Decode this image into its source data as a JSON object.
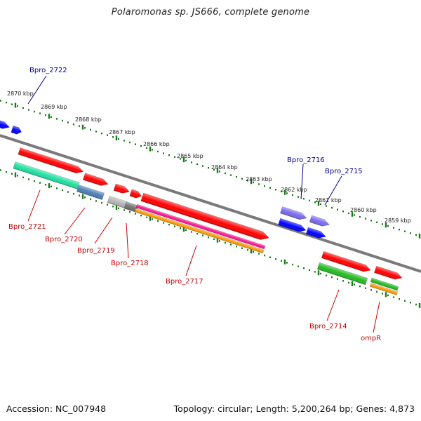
{
  "title": "Polaromonas sp. JS666, complete genome",
  "footer": {
    "accession": "Accession: NC_007948",
    "topology": "Topology: circular; Length: 5,200,264 bp; Genes: 4,873"
  },
  "colors": {
    "backbone": "#808080",
    "tick": "#1a7a1a",
    "forward_label": "#00008b",
    "reverse_label": "#cc0000",
    "red": "#ff0000",
    "blue": "#0000ff",
    "purple": "#7b68ee",
    "teal": "#1fe0a0",
    "steel": "#4a7fb5",
    "grey_light": "#b4b4b4",
    "grey_dark": "#707070",
    "magenta": "#ff1493",
    "orange": "#ff9900",
    "green": "#22bb22"
  },
  "kbp_labels": [
    "2870 kbp",
    "2869 kbp",
    "2868 kbp",
    "2867 kbp",
    "2866 kbp",
    "2865 kbp",
    "2864 kbp",
    "2863 kbp",
    "2862 kbp",
    "2861 kbp",
    "2860 kbp",
    "2859 kbp"
  ],
  "genes": [
    {
      "name": "Bpro_2722",
      "strand": "forward"
    },
    {
      "name": "Bpro_2716",
      "strand": "forward"
    },
    {
      "name": "Bpro_2715",
      "strand": "forward"
    },
    {
      "name": "Bpro_2721",
      "strand": "reverse"
    },
    {
      "name": "Bpro_2720",
      "strand": "reverse"
    },
    {
      "name": "Bpro_2719",
      "strand": "reverse"
    },
    {
      "name": "Bpro_2718",
      "strand": "reverse"
    },
    {
      "name": "Bpro_2717",
      "strand": "reverse"
    },
    {
      "name": "Bpro_2714",
      "strand": "reverse"
    },
    {
      "name": "ompR",
      "strand": "reverse"
    }
  ]
}
